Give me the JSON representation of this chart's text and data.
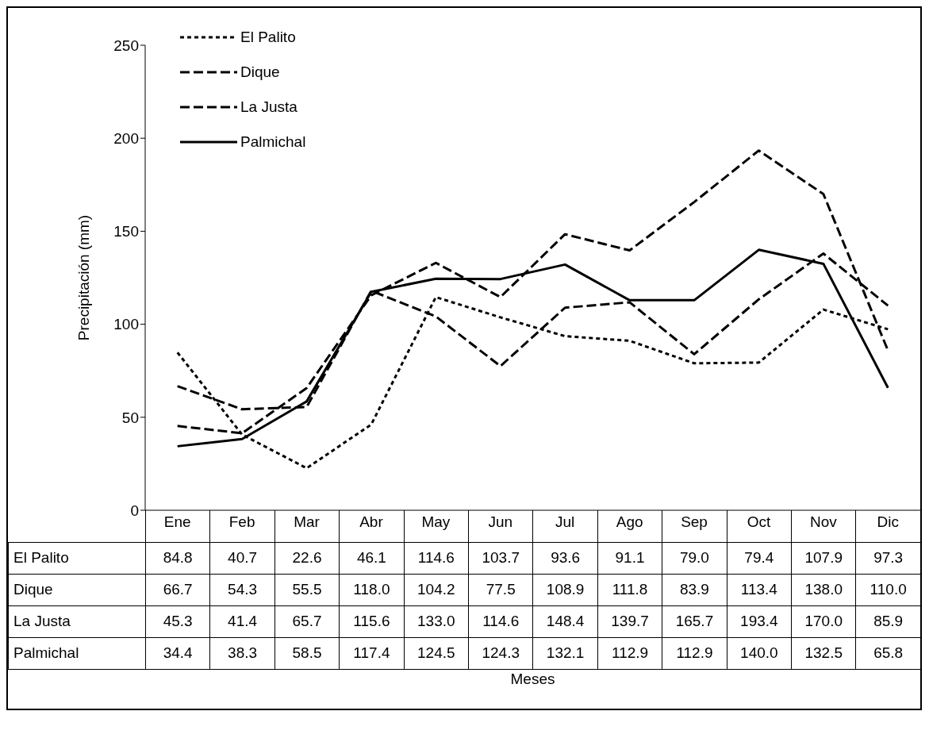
{
  "chart_data": {
    "type": "line",
    "annotations": [
      "Meses"
    ],
    "ylabel": "Precipitación (mm)",
    "categories": [
      "Ene",
      "Feb",
      "Mar",
      "Abr",
      "May",
      "Jun",
      "Jul",
      "Ago",
      "Sep",
      "Oct",
      "Nov",
      "Dic"
    ],
    "series": [
      {
        "name": "El Palito",
        "color": "#000000",
        "line_style": "dotted",
        "values": [
          84.8,
          40.7,
          22.6,
          46.1,
          114.6,
          103.7,
          93.6,
          91.1,
          79.0,
          79.4,
          107.9,
          97.3
        ],
        "value_labels": [
          "84.8",
          "40.7",
          "22.6",
          "46.1",
          "114.6",
          "103.7",
          "93.6",
          "91.1",
          "79.0",
          "79.4",
          "107.9",
          "97.3"
        ]
      },
      {
        "name": "Dique",
        "color": "#000000",
        "line_style": "dashed",
        "values": [
          66.7,
          54.3,
          55.5,
          118.0,
          104.2,
          77.5,
          108.9,
          111.8,
          83.9,
          113.4,
          138.0,
          110.0
        ],
        "value_labels": [
          "66.7",
          "54.3",
          "55.5",
          "118.0",
          "104.2",
          "77.5",
          "108.9",
          "111.8",
          "83.9",
          "113.4",
          "138.0",
          "110.0"
        ]
      },
      {
        "name": "La Justa",
        "color": "#000000",
        "line_style": "dashed",
        "values": [
          45.3,
          41.4,
          65.7,
          115.6,
          133.0,
          114.6,
          148.4,
          139.7,
          165.7,
          193.4,
          170.0,
          85.9
        ],
        "value_labels": [
          "45.3",
          "41.4",
          "65.7",
          "115.6",
          "133.0",
          "114.6",
          "148.4",
          "139.7",
          "165.7",
          "193.4",
          "170.0",
          "85.9"
        ]
      },
      {
        "name": "Palmichal",
        "color": "#000000",
        "line_style": "solid",
        "values": [
          34.4,
          38.3,
          58.5,
          117.4,
          124.5,
          124.3,
          132.1,
          112.9,
          112.9,
          140.0,
          132.5,
          65.8
        ],
        "value_labels": [
          "34.4",
          "38.3",
          "58.5",
          "117.4",
          "124.5",
          "124.3",
          "132.1",
          "112.9",
          "112.9",
          "140.0",
          "132.5",
          "65.8"
        ]
      }
    ],
    "ylim": [
      0,
      250
    ],
    "yticks": [
      0,
      50,
      100,
      150,
      200,
      250
    ],
    "legend": "top left",
    "marker": "none"
  }
}
